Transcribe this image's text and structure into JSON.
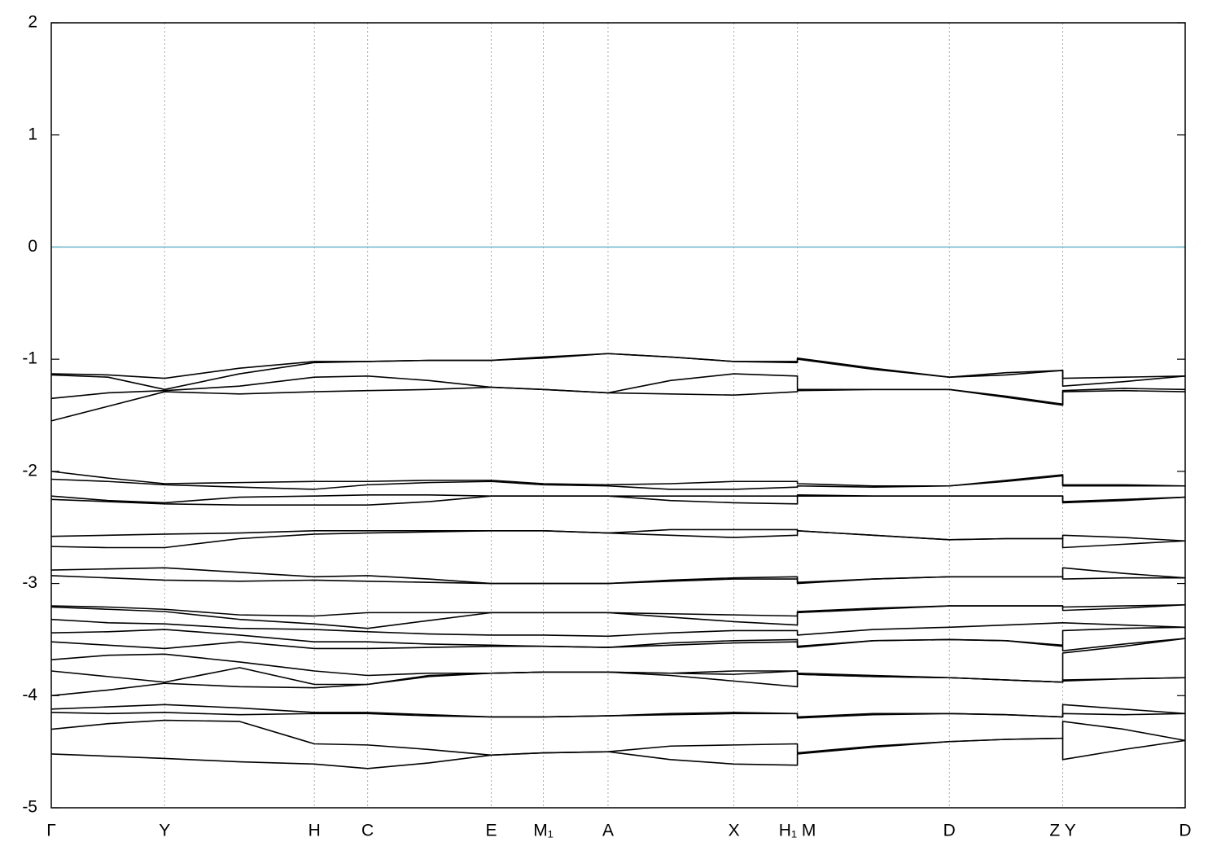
{
  "chart_data": {
    "type": "line",
    "x": [
      0,
      0.5,
      1.0,
      1.66,
      2.32,
      2.79,
      3.33,
      3.88,
      4.34,
      4.91,
      5.46,
      6.02,
      6.58,
      6.58,
      7.25,
      7.92,
      8.42,
      8.92,
      8.92,
      9.46,
      10
    ],
    "xlim": [
      0,
      10
    ],
    "xticks": [
      {
        "value": 0,
        "label": "Γ"
      },
      {
        "value": 1.0,
        "label": "Y"
      },
      {
        "value": 2.32,
        "label": "H"
      },
      {
        "value": 2.79,
        "label": "C"
      },
      {
        "value": 3.88,
        "label": "E"
      },
      {
        "value": 4.34,
        "label": "M₁"
      },
      {
        "value": 4.91,
        "label": "A"
      },
      {
        "value": 6.02,
        "label": "X"
      },
      {
        "value": 6.58,
        "label": "H₁ M"
      },
      {
        "value": 7.92,
        "label": "D"
      },
      {
        "value": 8.92,
        "label": "Z Y"
      },
      {
        "value": 10,
        "label": "D"
      }
    ],
    "ylim": [
      -5,
      2
    ],
    "yticks": [
      2,
      1,
      0,
      -1,
      -2,
      -3,
      -4,
      -5
    ],
    "grid": true,
    "color": "#000000",
    "hline": {
      "value": 0,
      "color": "#6bb8cc"
    },
    "series": [
      {
        "values": [
          -1.13,
          -1.14,
          -1.17,
          -1.08,
          -1.02,
          -1.02,
          -1.01,
          -1.01,
          -0.98,
          -0.95,
          -0.98,
          -1.02,
          -1.02,
          -0.99,
          -1.08,
          -1.16,
          -1.12,
          -1.1,
          -1.17,
          -1.16,
          -1.15
        ]
      },
      {
        "values": [
          -1.14,
          -1.16,
          -1.27,
          -1.13,
          -1.03,
          -1.02,
          -1.01,
          -1.01,
          -0.99,
          -0.95,
          -0.98,
          -1.02,
          -1.03,
          -1.0,
          -1.09,
          -1.16,
          -1.14,
          -1.1,
          -1.24,
          -1.2,
          -1.15
        ]
      },
      {
        "values": [
          -1.35,
          -1.3,
          -1.28,
          -1.24,
          -1.16,
          -1.15,
          -1.19,
          -1.25,
          -1.27,
          -1.3,
          -1.19,
          -1.13,
          -1.15,
          -1.27,
          -1.27,
          -1.27,
          -1.33,
          -1.4,
          -1.28,
          -1.26,
          -1.27
        ]
      },
      {
        "values": [
          -1.55,
          -1.42,
          -1.29,
          -1.31,
          -1.29,
          -1.28,
          -1.27,
          -1.25,
          -1.27,
          -1.3,
          -1.31,
          -1.32,
          -1.29,
          -1.28,
          -1.27,
          -1.27,
          -1.34,
          -1.41,
          -1.29,
          -1.28,
          -1.29
        ]
      },
      {
        "values": [
          -2.0,
          -2.06,
          -2.11,
          -2.1,
          -2.09,
          -2.09,
          -2.08,
          -2.08,
          -2.11,
          -2.12,
          -2.11,
          -2.09,
          -2.09,
          -2.11,
          -2.13,
          -2.13,
          -2.08,
          -2.03,
          -2.12,
          -2.12,
          -2.13
        ]
      },
      {
        "values": [
          -2.07,
          -2.09,
          -2.12,
          -2.14,
          -2.16,
          -2.12,
          -2.1,
          -2.09,
          -2.12,
          -2.13,
          -2.16,
          -2.16,
          -2.14,
          -2.13,
          -2.14,
          -2.13,
          -2.09,
          -2.04,
          -2.13,
          -2.13,
          -2.13
        ]
      },
      {
        "values": [
          -2.22,
          -2.26,
          -2.28,
          -2.23,
          -2.22,
          -2.21,
          -2.21,
          -2.22,
          -2.22,
          -2.22,
          -2.22,
          -2.22,
          -2.22,
          -2.21,
          -2.22,
          -2.22,
          -2.22,
          -2.22,
          -2.27,
          -2.25,
          -2.23
        ]
      },
      {
        "values": [
          -2.25,
          -2.27,
          -2.29,
          -2.3,
          -2.3,
          -2.3,
          -2.27,
          -2.22,
          -2.22,
          -2.22,
          -2.26,
          -2.28,
          -2.29,
          -2.22,
          -2.22,
          -2.22,
          -2.22,
          -2.22,
          -2.28,
          -2.26,
          -2.23
        ]
      },
      {
        "values": [
          -2.58,
          -2.57,
          -2.56,
          -2.55,
          -2.53,
          -2.53,
          -2.53,
          -2.53,
          -2.53,
          -2.55,
          -2.52,
          -2.52,
          -2.52,
          -2.53,
          -2.57,
          -2.61,
          -2.6,
          -2.6,
          -2.57,
          -2.59,
          -2.62
        ]
      },
      {
        "values": [
          -2.67,
          -2.68,
          -2.68,
          -2.6,
          -2.56,
          -2.55,
          -2.54,
          -2.53,
          -2.53,
          -2.55,
          -2.57,
          -2.59,
          -2.57,
          -2.53,
          -2.57,
          -2.61,
          -2.6,
          -2.6,
          -2.68,
          -2.65,
          -2.62
        ]
      },
      {
        "values": [
          -2.88,
          -2.87,
          -2.86,
          -2.9,
          -2.94,
          -2.93,
          -2.96,
          -3.0,
          -3.0,
          -3.0,
          -2.97,
          -2.95,
          -2.94,
          -2.99,
          -2.96,
          -2.94,
          -2.94,
          -2.94,
          -2.86,
          -2.91,
          -2.95
        ]
      },
      {
        "values": [
          -2.93,
          -2.95,
          -2.97,
          -2.98,
          -2.97,
          -2.98,
          -2.99,
          -3.0,
          -3.0,
          -3.0,
          -2.98,
          -2.96,
          -2.96,
          -3.0,
          -2.96,
          -2.94,
          -2.94,
          -2.94,
          -2.96,
          -2.95,
          -2.95
        ]
      },
      {
        "values": [
          -3.2,
          -3.21,
          -3.23,
          -3.28,
          -3.29,
          -3.26,
          -3.26,
          -3.26,
          -3.26,
          -3.26,
          -3.27,
          -3.28,
          -3.29,
          -3.25,
          -3.22,
          -3.2,
          -3.2,
          -3.2,
          -3.21,
          -3.2,
          -3.19
        ]
      },
      {
        "values": [
          -3.21,
          -3.23,
          -3.25,
          -3.32,
          -3.36,
          -3.4,
          -3.33,
          -3.26,
          -3.26,
          -3.26,
          -3.3,
          -3.34,
          -3.37,
          -3.26,
          -3.23,
          -3.2,
          -3.2,
          -3.2,
          -3.24,
          -3.22,
          -3.19
        ]
      },
      {
        "values": [
          -3.32,
          -3.35,
          -3.36,
          -3.4,
          -3.41,
          -3.43,
          -3.45,
          -3.46,
          -3.46,
          -3.47,
          -3.44,
          -3.42,
          -3.42,
          -3.46,
          -3.41,
          -3.39,
          -3.37,
          -3.35,
          -3.35,
          -3.37,
          -3.39
        ]
      },
      {
        "values": [
          -3.44,
          -3.43,
          -3.41,
          -3.46,
          -3.52,
          -3.52,
          -3.54,
          -3.55,
          -3.56,
          -3.57,
          -3.53,
          -3.51,
          -3.5,
          -3.56,
          -3.51,
          -3.5,
          -3.51,
          -3.55,
          -3.42,
          -3.4,
          -3.39
        ]
      },
      {
        "values": [
          -3.52,
          -3.55,
          -3.58,
          -3.52,
          -3.58,
          -3.58,
          -3.57,
          -3.56,
          -3.56,
          -3.57,
          -3.55,
          -3.53,
          -3.52,
          -3.57,
          -3.51,
          -3.5,
          -3.51,
          -3.56,
          -3.6,
          -3.54,
          -3.49
        ]
      },
      {
        "values": [
          -3.68,
          -3.64,
          -3.63,
          -3.7,
          -3.78,
          -3.82,
          -3.8,
          -3.8,
          -3.79,
          -3.79,
          -3.8,
          -3.78,
          -3.78,
          -3.8,
          -3.82,
          -3.84,
          -3.86,
          -3.88,
          -3.62,
          -3.56,
          -3.49
        ]
      },
      {
        "values": [
          -3.78,
          -3.83,
          -3.88,
          -3.75,
          -3.9,
          -3.9,
          -3.82,
          -3.8,
          -3.79,
          -3.79,
          -3.8,
          -3.81,
          -3.78,
          -3.81,
          -3.83,
          -3.84,
          -3.86,
          -3.88,
          -3.86,
          -3.85,
          -3.84
        ]
      },
      {
        "values": [
          -4.0,
          -3.95,
          -3.89,
          -3.92,
          -3.93,
          -3.9,
          -3.83,
          -3.8,
          -3.79,
          -3.79,
          -3.82,
          -3.87,
          -3.92,
          -3.81,
          -3.83,
          -3.84,
          -3.86,
          -3.88,
          -3.87,
          -3.85,
          -3.84
        ]
      },
      {
        "values": [
          -4.12,
          -4.1,
          -4.08,
          -4.11,
          -4.15,
          -4.15,
          -4.17,
          -4.19,
          -4.19,
          -4.18,
          -4.16,
          -4.15,
          -4.16,
          -4.19,
          -4.16,
          -4.16,
          -4.17,
          -4.19,
          -4.08,
          -4.12,
          -4.16
        ]
      },
      {
        "values": [
          -4.15,
          -4.16,
          -4.15,
          -4.17,
          -4.16,
          -4.16,
          -4.18,
          -4.19,
          -4.19,
          -4.18,
          -4.17,
          -4.16,
          -4.16,
          -4.2,
          -4.17,
          -4.16,
          -4.17,
          -4.19,
          -4.16,
          -4.17,
          -4.16
        ]
      },
      {
        "values": [
          -4.3,
          -4.25,
          -4.22,
          -4.23,
          -4.43,
          -4.44,
          -4.48,
          -4.53,
          -4.51,
          -4.5,
          -4.45,
          -4.44,
          -4.43,
          -4.51,
          -4.45,
          -4.41,
          -4.39,
          -4.38,
          -4.23,
          -4.3,
          -4.4
        ]
      },
      {
        "values": [
          -4.52,
          -4.54,
          -4.56,
          -4.59,
          -4.61,
          -4.65,
          -4.6,
          -4.53,
          -4.51,
          -4.5,
          -4.57,
          -4.61,
          -4.62,
          -4.52,
          -4.46,
          -4.41,
          -4.39,
          -4.38,
          -4.57,
          -4.48,
          -4.4
        ]
      }
    ]
  }
}
